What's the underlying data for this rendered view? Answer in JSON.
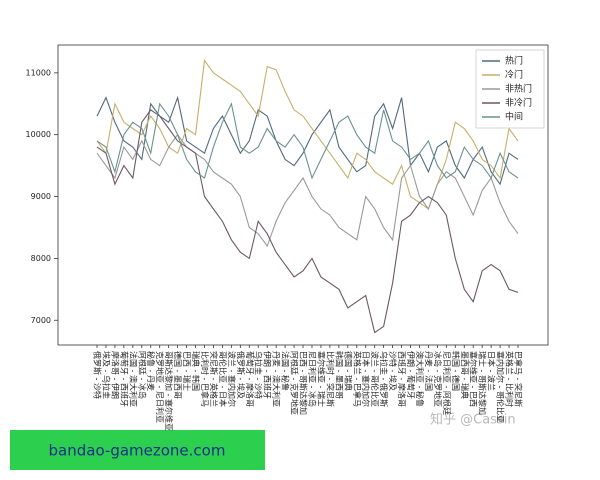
{
  "chart_data": {
    "type": "line",
    "categories": [
      "俄罗斯 - 沙特",
      "埃及 - 乌拉圭",
      "摩洛哥 - 伊朗",
      "葡萄牙 - 西班牙",
      "法国 - 澳大利亚",
      "阿根廷 - 冰岛",
      "秘鲁 - 丹麦",
      "克罗地亚 - 尼日利亚",
      "哥斯达黎加 - 塞尔维亚",
      "德国 - 墨西哥",
      "巴西 - 瑞士",
      "瑞典 - 韩国",
      "比利时 - 巴拿马",
      "突尼斯 - 英格兰",
      "哥伦比亚 - 日本",
      "波兰 - 塞内加尔",
      "俄罗斯 - 埃及",
      "葡萄牙 - 摩洛哥",
      "乌拉圭 - 沙特",
      "伊朗 - 西班牙",
      "丹麦 - 澳大利亚",
      "法国 - 秘鲁",
      "阿根廷 - 克罗地亚",
      "巴西 - 哥斯达黎加",
      "尼日利亚 - 冰岛",
      "塞尔维亚 - 瑞士",
      "比利时 - 突尼斯",
      "韩国 - 墨西哥",
      "德国 - 瑞典",
      "英格兰 - 巴拿马",
      "日本 - 塞内加尔",
      "波兰 - 哥伦比亚",
      "乌拉圭 - 俄罗斯",
      "沙特 - 埃及",
      "西班牙 - 摩洛哥",
      "伊朗 - 葡萄牙",
      "澳大利亚 - 秘鲁",
      "丹麦 - 法国",
      "冰岛 - 克罗地亚",
      "尼日利亚 - 阿根廷",
      "韩国 - 德国",
      "墨西哥 - 瑞典",
      "塞尔维亚 - 巴西",
      "瑞士 - 哥斯达黎加",
      "日本 - 波兰",
      "塞内加尔 - 哥伦比亚",
      "英格兰 - 比利时",
      "巴拿马 - 突尼斯"
    ],
    "series": [
      {
        "name": "热门",
        "color": "#4f6a7d",
        "values": [
          10300,
          10600,
          10200,
          9900,
          9800,
          9600,
          10500,
          10300,
          10200,
          10600,
          9900,
          9800,
          9700,
          10100,
          10300,
          10000,
          9700,
          9900,
          10400,
          10300,
          9900,
          9600,
          9500,
          9700,
          10000,
          10200,
          10400,
          9800,
          9600,
          9400,
          9500,
          10300,
          10500,
          10100,
          10600,
          9500,
          9700,
          9400,
          9800,
          9900,
          9500,
          9300,
          9600,
          9800,
          9400,
          9200,
          9700,
          9600
        ]
      },
      {
        "name": "冷门",
        "color": "#c4b06a",
        "values": [
          9900,
          9700,
          10500,
          10200,
          10100,
          10000,
          10300,
          10100,
          9800,
          9700,
          10100,
          10000,
          11200,
          11000,
          10900,
          10800,
          10700,
          10500,
          10300,
          11100,
          11050,
          10700,
          10400,
          10300,
          10100,
          9900,
          9700,
          9500,
          9300,
          9700,
          9600,
          9400,
          9300,
          9200,
          9500,
          9000,
          8900,
          8800,
          9200,
          9600,
          10200,
          10100,
          9900,
          9600,
          9500,
          9300,
          10100,
          9900
        ]
      },
      {
        "name": "非热门",
        "color": "#9a9a9a",
        "values": [
          9700,
          9500,
          9300,
          9800,
          9600,
          9900,
          9600,
          9500,
          9800,
          10000,
          9800,
          9700,
          9600,
          9400,
          9300,
          9200,
          9000,
          8500,
          8400,
          8200,
          8600,
          8900,
          9100,
          9300,
          9000,
          8800,
          8700,
          8500,
          8400,
          8300,
          9000,
          8800,
          8500,
          8300,
          9300,
          9500,
          9000,
          8800,
          9200,
          9400,
          9300,
          9000,
          8700,
          9100,
          9300,
          8900,
          8600,
          8400
        ]
      },
      {
        "name": "非冷门",
        "color": "#6c5866",
        "values": [
          9800,
          9700,
          9200,
          9500,
          9300,
          10200,
          10400,
          10300,
          10100,
          9900,
          9800,
          9700,
          9000,
          8800,
          8600,
          8300,
          8100,
          8000,
          8600,
          8400,
          8100,
          7900,
          7700,
          7800,
          8000,
          7700,
          7600,
          7500,
          7200,
          7300,
          7400,
          6800,
          6900,
          7600,
          8600,
          8700,
          8900,
          9000,
          8900,
          8700,
          8000,
          7500,
          7300,
          7800,
          7900,
          7800,
          7500,
          7450
        ]
      },
      {
        "name": "中间",
        "color": "#6a9290",
        "values": [
          9900,
          9800,
          9400,
          10000,
          10200,
          10100,
          9700,
          10500,
          10300,
          10000,
          9600,
          9400,
          9300,
          9800,
          10200,
          10500,
          9800,
          9700,
          9800,
          10100,
          9900,
          9800,
          10000,
          9800,
          9300,
          9600,
          9900,
          10200,
          10300,
          10000,
          9800,
          9700,
          10400,
          9900,
          9800,
          9600,
          9700,
          9900,
          9500,
          9300,
          9400,
          9800,
          9600,
          9500,
          9300,
          9700,
          9400,
          9300
        ]
      }
    ],
    "ylim": [
      6600,
      11450
    ],
    "yticks": [
      7000,
      8000,
      9000,
      10000,
      11000
    ],
    "legend": "upper right"
  },
  "watermark": "知乎 @Cassin",
  "banner": "bandao-gamezone.com"
}
